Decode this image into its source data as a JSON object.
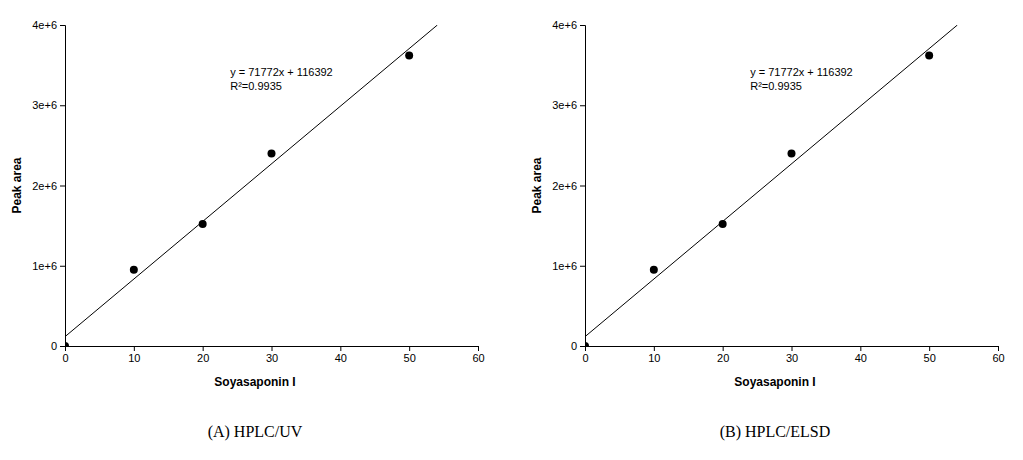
{
  "chart_data": [
    {
      "type": "scatter",
      "title": "(A) HPLC/UV",
      "x_label": "Soyasaponin I",
      "y_label": "Peak area",
      "annotations": [
        "y = 71772x + 116392",
        "R²=0.9935"
      ],
      "xlim": [
        0,
        60
      ],
      "xticks": [
        0,
        10,
        20,
        30,
        40,
        50,
        60
      ],
      "ylim": [
        0,
        4000000
      ],
      "yticks": [
        {
          "value": 0,
          "label": "0"
        },
        {
          "value": 1000000,
          "label": "1e+6"
        },
        {
          "value": 2000000,
          "label": "2e+6"
        },
        {
          "value": 3000000,
          "label": "3e+6"
        },
        {
          "value": 4000000,
          "label": "4e+6"
        }
      ],
      "series": [
        {
          "type": "scatter",
          "marker": "circle",
          "color": "#000000",
          "x": [
            0,
            10,
            20,
            30,
            50
          ],
          "values": [
            0,
            950000,
            1520000,
            2400000,
            3620000
          ]
        },
        {
          "type": "line",
          "line_style": "solid",
          "color": "#000000",
          "x": [
            0,
            54.1
          ],
          "values": [
            116392,
            4000000
          ]
        }
      ]
    },
    {
      "type": "scatter",
      "title": "(B) HPLC/ELSD",
      "x_label": "Soyasaponin I",
      "y_label": "Peak area",
      "annotations": [
        "y = 71772x + 116392",
        "R²=0.9935"
      ],
      "xlim": [
        0,
        60
      ],
      "xticks": [
        0,
        10,
        20,
        30,
        40,
        50,
        60
      ],
      "ylim": [
        0,
        4000000
      ],
      "yticks": [
        {
          "value": 0,
          "label": "0"
        },
        {
          "value": 1000000,
          "label": "1e+6"
        },
        {
          "value": 2000000,
          "label": "2e+6"
        },
        {
          "value": 3000000,
          "label": "3e+6"
        },
        {
          "value": 4000000,
          "label": "4e+6"
        }
      ],
      "series": [
        {
          "type": "scatter",
          "marker": "circle",
          "color": "#000000",
          "x": [
            0,
            10,
            20,
            30,
            50
          ],
          "values": [
            0,
            950000,
            1520000,
            2400000,
            3620000
          ]
        },
        {
          "type": "line",
          "line_style": "solid",
          "color": "#000000",
          "x": [
            0,
            54.1
          ],
          "values": [
            116392,
            4000000
          ]
        }
      ]
    }
  ]
}
